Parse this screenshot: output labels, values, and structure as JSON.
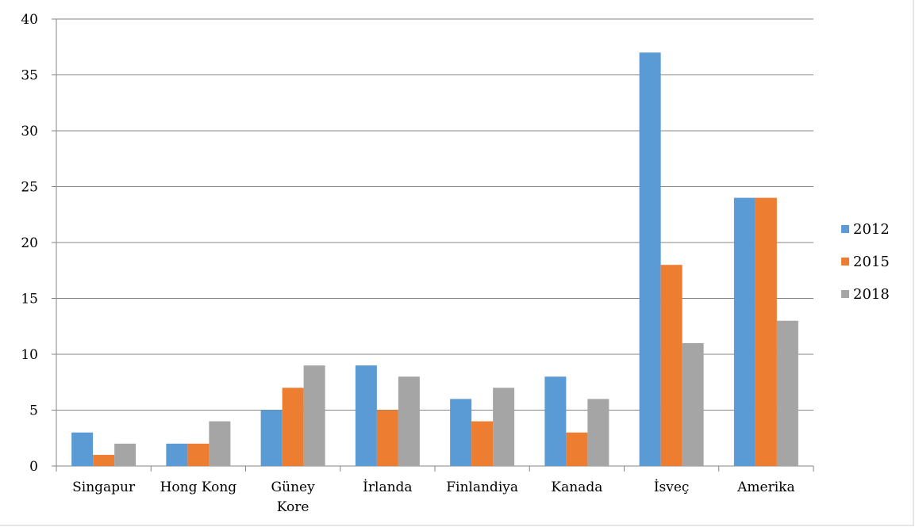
{
  "chart_data": {
    "type": "bar",
    "categories": [
      "Singapur",
      "Hong Kong",
      "Güney Kore",
      "İrlanda",
      "Finlandiya",
      "Kanada",
      "İsveç",
      "Amerika"
    ],
    "series": [
      {
        "name": "2012",
        "color": "#5b9bd5",
        "values": [
          3,
          2,
          5,
          9,
          6,
          8,
          37,
          24
        ]
      },
      {
        "name": "2015",
        "color": "#ed7d31",
        "values": [
          1,
          2,
          7,
          5,
          4,
          3,
          18,
          24
        ]
      },
      {
        "name": "2018",
        "color": "#a5a5a5",
        "values": [
          2,
          4,
          9,
          8,
          7,
          6,
          11,
          13
        ]
      }
    ],
    "yticks": [
      0,
      5,
      10,
      15,
      20,
      25,
      30,
      35,
      40
    ],
    "ylim": [
      0,
      40
    ],
    "grid": true,
    "legend_position": "right",
    "title": "",
    "xlabel": "",
    "ylabel": ""
  }
}
